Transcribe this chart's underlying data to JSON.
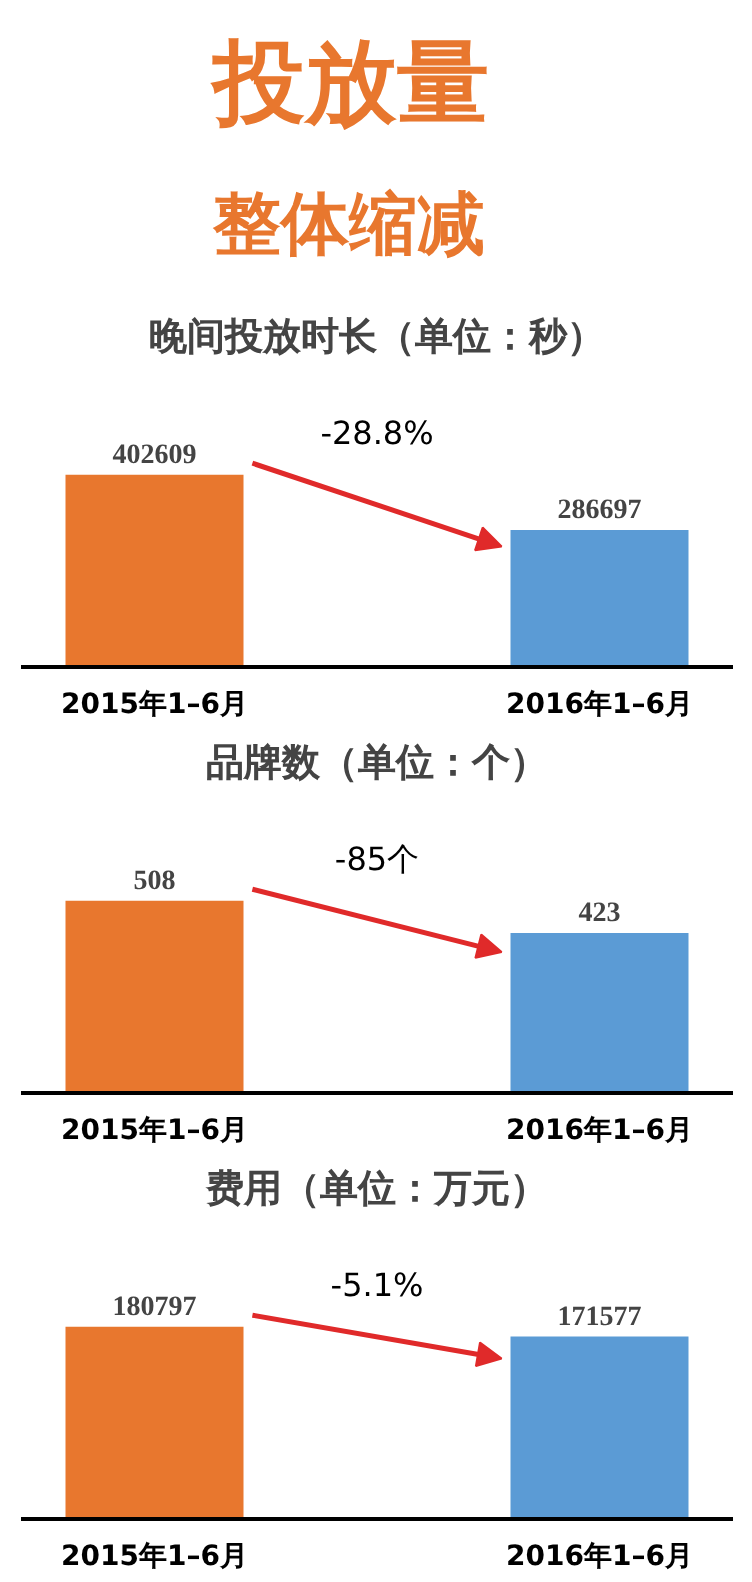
{
  "chart_data": [
    {
      "type": "other",
      "title": "投放量",
      "subtitle": "整体缩减",
      "color": "#e8772e"
    },
    {
      "type": "bar",
      "title": "晚间投放时长（单位：秒）",
      "categories": [
        "2015年1–6月",
        "2016年1–6月"
      ],
      "values": [
        402609,
        286697
      ],
      "colors": [
        "#e8772e",
        "#5b9bd5"
      ],
      "data_labels": true,
      "grid": false,
      "annotations": [
        "-28.8%"
      ]
    },
    {
      "type": "bar",
      "title": "品牌数（单位：个）",
      "categories": [
        "2015年1–6月",
        "2016年1–6月"
      ],
      "values": [
        508,
        423
      ],
      "colors": [
        "#e8772e",
        "#5b9bd5"
      ],
      "data_labels": true,
      "grid": false,
      "annotations": [
        "-85个"
      ]
    },
    {
      "type": "bar",
      "title": "费用（单位：万元）",
      "categories": [
        "2015年1–6月",
        "2016年1–6月"
      ],
      "values": [
        180797,
        171577
      ],
      "colors": [
        "#e8772e",
        "#5b9bd5"
      ],
      "data_labels": true,
      "grid": false,
      "annotations": [
        "-5.1%"
      ]
    }
  ]
}
